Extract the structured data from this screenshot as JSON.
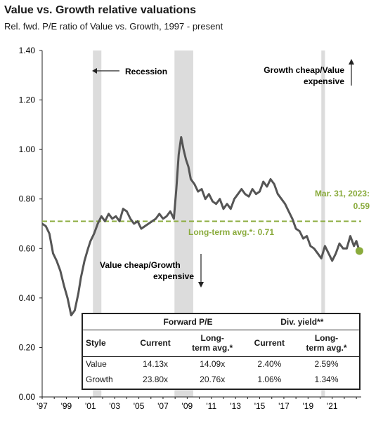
{
  "title": "Value vs. Growth relative valuations",
  "subtitle": "Rel. fwd. P/E ratio of Value vs. Growth, 1997 - present",
  "annotations": {
    "recession": "Recession",
    "growth_cheap_1": "Growth cheap/Value",
    "growth_cheap_2": "expensive",
    "value_cheap_1": "Value cheap/Growth",
    "value_cheap_2": "expensive",
    "latest_1": "Mar. 31, 2023:",
    "latest_2": "0.59",
    "long_term_avg": "Long-term avg.*:  0.71"
  },
  "colors": {
    "series": "#555555",
    "average": "#8aab3c",
    "recession": "#dcdcdc",
    "latest_dot": "#8aab3c"
  },
  "chart_data": {
    "type": "line",
    "title": "Value vs. Growth relative valuations",
    "subtitle": "Rel. fwd. P/E ratio of Value vs. Growth, 1997 - present",
    "xlabel": "",
    "ylabel": "",
    "xlim": [
      1997,
      2023.4
    ],
    "ylim": [
      0.0,
      1.4
    ],
    "yticks": [
      "0.00",
      "0.20",
      "0.40",
      "0.60",
      "0.80",
      "1.00",
      "1.20",
      "1.40"
    ],
    "xticks": [
      "'97",
      "'99",
      "'01",
      "'03",
      "'05",
      "'07",
      "'09",
      "'11",
      "'13",
      "'15",
      "'17",
      "'19",
      "'21"
    ],
    "grid": false,
    "average": 0.71,
    "latest": {
      "x": 2023.25,
      "y": 0.59
    },
    "recessions": [
      [
        2001.2,
        2001.9
      ],
      [
        2007.95,
        2009.5
      ],
      [
        2020.1,
        2020.4
      ]
    ],
    "series": [
      {
        "x": [
          1997.0,
          1997.3,
          1997.6,
          1997.9,
          1998.2,
          1998.5,
          1998.8,
          1999.1,
          1999.4,
          1999.7,
          2000.0,
          2000.2,
          2000.5,
          2000.8,
          2001.0,
          2001.3,
          2001.6,
          2001.9,
          2002.2,
          2002.5,
          2002.8,
          2003.1,
          2003.4,
          2003.7,
          2004.0,
          2004.3,
          2004.6,
          2004.9,
          2005.2,
          2005.5,
          2005.8,
          2006.1,
          2006.4,
          2006.7,
          2007.0,
          2007.3,
          2007.6,
          2007.9,
          2008.1,
          2008.3,
          2008.5,
          2008.7,
          2008.9,
          2009.1,
          2009.3,
          2009.6,
          2009.9,
          2010.2,
          2010.5,
          2010.8,
          2011.1,
          2011.4,
          2011.7,
          2012.0,
          2012.3,
          2012.6,
          2012.9,
          2013.2,
          2013.5,
          2013.8,
          2014.1,
          2014.4,
          2014.7,
          2015.0,
          2015.3,
          2015.6,
          2015.9,
          2016.2,
          2016.5,
          2016.8,
          2017.1,
          2017.4,
          2017.7,
          2018.0,
          2018.3,
          2018.6,
          2018.9,
          2019.2,
          2019.5,
          2019.8,
          2020.1,
          2020.4,
          2020.7,
          2021.0,
          2021.3,
          2021.6,
          2021.9,
          2022.2,
          2022.5,
          2022.8,
          2023.0,
          2023.25
        ],
        "y": [
          0.7,
          0.69,
          0.66,
          0.58,
          0.55,
          0.51,
          0.45,
          0.4,
          0.33,
          0.35,
          0.42,
          0.48,
          0.55,
          0.6,
          0.63,
          0.66,
          0.7,
          0.73,
          0.71,
          0.74,
          0.72,
          0.73,
          0.71,
          0.76,
          0.75,
          0.72,
          0.7,
          0.71,
          0.68,
          0.69,
          0.7,
          0.71,
          0.72,
          0.74,
          0.72,
          0.73,
          0.75,
          0.72,
          0.84,
          0.98,
          1.05,
          1.0,
          0.96,
          0.93,
          0.88,
          0.86,
          0.83,
          0.84,
          0.8,
          0.82,
          0.79,
          0.78,
          0.8,
          0.76,
          0.78,
          0.76,
          0.8,
          0.82,
          0.84,
          0.82,
          0.81,
          0.84,
          0.82,
          0.83,
          0.87,
          0.85,
          0.88,
          0.86,
          0.82,
          0.8,
          0.78,
          0.75,
          0.72,
          0.68,
          0.67,
          0.64,
          0.65,
          0.61,
          0.6,
          0.58,
          0.56,
          0.61,
          0.58,
          0.55,
          0.58,
          0.62,
          0.6,
          0.6,
          0.65,
          0.61,
          0.63,
          0.59
        ]
      }
    ]
  },
  "table": {
    "group_forward_pe": "Forward P/E",
    "group_div_yield": "Div. yield**",
    "col_style": "Style",
    "col_current": "Current",
    "col_lt_1": "Long-",
    "col_lt_2": "term avg.*",
    "col_current2": "Current",
    "col_lt2_1": "Long-",
    "col_lt2_2": "term avg.*",
    "rows": [
      {
        "style": "Value",
        "pe_current": "14.13x",
        "pe_avg": "14.09x",
        "dy_current": "2.40%",
        "dy_avg": "2.59%"
      },
      {
        "style": "Growth",
        "pe_current": "23.80x",
        "pe_avg": "20.76x",
        "dy_current": "1.06%",
        "dy_avg": "1.34%"
      }
    ]
  }
}
